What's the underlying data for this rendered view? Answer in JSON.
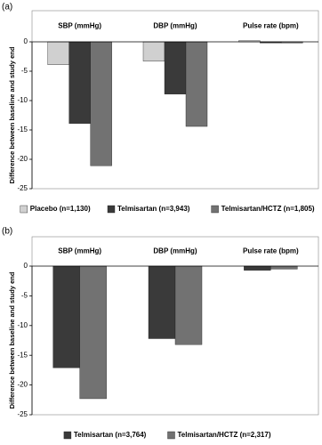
{
  "chart_data": [
    {
      "type": "bar",
      "panel_label": "(a)",
      "categories": [
        "SBP (mmHg)",
        "DBP (mmHg)",
        "Pulse rate (bpm)"
      ],
      "y_label": "Difference between baseline and study end",
      "series": [
        {
          "name": "Placebo (n=1,130)",
          "color": "#d0d0d0",
          "values": [
            -3.9,
            -3.3,
            0.2
          ]
        },
        {
          "name": "Telmisartan (n=3,943)",
          "color": "#3a3a3a",
          "values": [
            -13.9,
            -8.9,
            -0.2
          ]
        },
        {
          "name": "Telmisartan/HCTZ (n=1,805)",
          "color": "#727272",
          "values": [
            -21.1,
            -14.4,
            -0.2
          ]
        }
      ],
      "ylim": [
        -25,
        0
      ],
      "yticks": [
        0,
        -5,
        -10,
        -15,
        -20,
        -25
      ]
    },
    {
      "type": "bar",
      "panel_label": "(b)",
      "categories": [
        "SBP (mmHg)",
        "DBP (mmHg)",
        "Pulse rate (bpm)"
      ],
      "y_label": "Difference between baseline and study end",
      "series": [
        {
          "name": "Telmisartan (n=3,764)",
          "color": "#3a3a3a",
          "values": [
            -17.1,
            -12.2,
            -0.7
          ]
        },
        {
          "name": "Telmisartan/HCTZ (n=2,317)",
          "color": "#727272",
          "values": [
            -22.3,
            -13.2,
            -0.5
          ]
        }
      ],
      "ylim": [
        -25,
        0
      ],
      "yticks": [
        0,
        -5,
        -10,
        -15,
        -20,
        -25
      ]
    }
  ]
}
